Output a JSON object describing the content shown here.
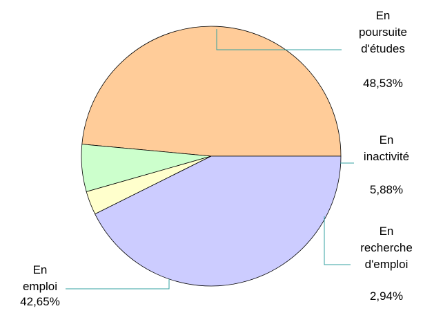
{
  "chart_data": {
    "type": "pie",
    "slices": [
      {
        "label_lines": [
          "En",
          "poursuite",
          "d'études"
        ],
        "value": 48.53,
        "value_label": "48,53%",
        "color": "#ffcc99"
      },
      {
        "label_lines": [
          "En",
          "inactivité"
        ],
        "value": 5.88,
        "value_label": "5,88%",
        "color": "#ccffcc"
      },
      {
        "label_lines": [
          "En",
          "recherche",
          "d'emploi"
        ],
        "value": 2.94,
        "value_label": "2,94%",
        "color": "#ffffcc"
      },
      {
        "label_lines": [
          "En",
          "emploi"
        ],
        "value": 42.65,
        "value_label": "42,65%",
        "color": "#ccccff"
      }
    ],
    "start_direction": "right",
    "direction": "counterclockwise",
    "legend": "none",
    "leader_line_color": "#33a0a0"
  }
}
